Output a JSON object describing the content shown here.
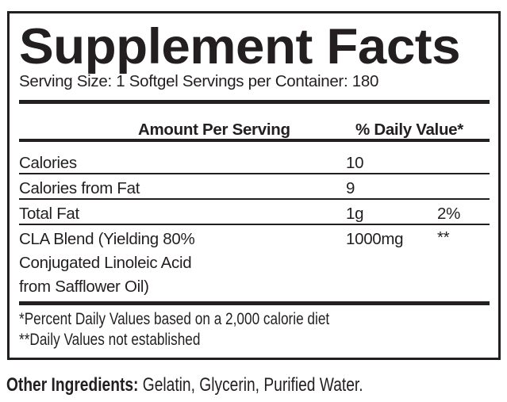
{
  "title": "Supplement Facts",
  "serving_info": "Serving Size: 1 Softgel  Servings per Container: 180",
  "header": {
    "amount": "Amount Per Serving",
    "daily_value": "% Daily Value*"
  },
  "rows": [
    {
      "name": "Calories",
      "amount": "10",
      "dv": ""
    },
    {
      "name": "Calories from Fat",
      "amount": "9",
      "dv": ""
    },
    {
      "name": "Total Fat",
      "amount": "1g",
      "dv": "2%"
    },
    {
      "name_lines": [
        "CLA Blend (Yielding 80%",
        "Conjugated Linoleic Acid",
        "from Safflower Oil)"
      ],
      "amount": "1000mg",
      "dv": "**"
    }
  ],
  "footnotes": [
    "*Percent Daily Values based on a 2,000 calorie diet",
    "**Daily Values not established"
  ],
  "other_ingredients": {
    "label": "Other Ingredients:",
    "value": " Gelatin, Glycerin, Purified Water."
  }
}
